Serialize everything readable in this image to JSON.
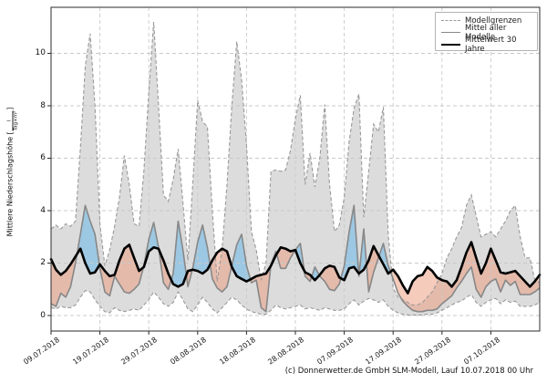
{
  "footer": {
    "credit": "(c) Donnerwetter.de GmbH SLM-Modell, Lauf 10.07.2018 00 Uhr"
  },
  "legend": {
    "items": [
      {
        "label": "Modellgrenzen",
        "style": "dashed-gray-line"
      },
      {
        "label": "Mittel aller Modelle",
        "style": "solid-gray-line"
      },
      {
        "label": "Mittelwert 30 Jahre",
        "style": "thick-black-line"
      }
    ]
  },
  "axes": {
    "y_label": "Mittlere Niederschlagshöhe",
    "y_bracket_open": "[",
    "y_bracket_close": "]",
    "y_unit_numerator": "l",
    "y_unit_denominator": "Tag×m²"
  },
  "chart_data": {
    "type": "area",
    "title": "",
    "xlabel": "",
    "ylabel": "Mittlere Niederschlagshöhe [l/(Tag×m²)]",
    "grid": true,
    "legend_position": "upper right",
    "ylim": [
      0,
      11.75
    ],
    "y_ticks": [
      0,
      2,
      4,
      6,
      8,
      10
    ],
    "x_is_days_from": "09.07.2018",
    "x_tick_interval_days": 10,
    "x_tick_labels": [
      "09.07.2018",
      "19.07.2018",
      "29.07.2018",
      "08.08.2018",
      "18.08.2018",
      "28.08.2018",
      "07.09.2018",
      "17.09.2018",
      "27.09.2018",
      "07.10.2018"
    ],
    "colors": {
      "band_fill": "#dcdcdc",
      "bound_line": "#999999",
      "mean_line": "#878787",
      "norm_line": "#000000",
      "above_fill": "rgba(140,195,230,0.78)",
      "below_fill": "rgba(236,156,126,0.52)",
      "grid_line": "#c9c9c9",
      "frame": "#2b2b2b"
    },
    "series": [
      {
        "name": "Modellgrenzen (oben)",
        "values": [
          3.3,
          3.45,
          3.3,
          3.5,
          3.4,
          3.6,
          6.4,
          9.5,
          10.75,
          8.0,
          3.5,
          1.9,
          2.5,
          3.4,
          4.5,
          6.1,
          5.0,
          3.5,
          3.4,
          5.5,
          8.5,
          11.2,
          8.0,
          4.6,
          4.35,
          5.2,
          6.35,
          4.3,
          2.1,
          5.0,
          8.2,
          7.4,
          7.2,
          4.0,
          1.3,
          2.5,
          5.0,
          8.0,
          10.45,
          9.0,
          6.5,
          3.2,
          2.5,
          1.35,
          2.0,
          5.5,
          5.55,
          5.5,
          5.55,
          6.3,
          7.5,
          8.4,
          5.0,
          6.2,
          4.9,
          6.0,
          8.05,
          5.0,
          3.2,
          3.45,
          4.5,
          6.65,
          7.9,
          8.45,
          3.75,
          5.5,
          7.3,
          7.0,
          7.95,
          3.1,
          1.05,
          0.7,
          0.6,
          0.5,
          0.4,
          0.4,
          0.5,
          0.7,
          0.9,
          1.25,
          1.6,
          2.2,
          2.55,
          3.0,
          3.35,
          4.2,
          4.6,
          3.8,
          3.0,
          3.1,
          3.2,
          3.0,
          3.3,
          3.6,
          4.0,
          4.2,
          3.0,
          2.2,
          2.2,
          1.35,
          1.25
        ]
      },
      {
        "name": "Modellgrenzen (unten)",
        "values": [
          0.3,
          0.25,
          0.35,
          0.3,
          0.3,
          0.4,
          0.7,
          0.95,
          0.9,
          0.6,
          0.35,
          0.15,
          0.1,
          0.3,
          0.2,
          0.15,
          0.2,
          0.25,
          0.2,
          0.4,
          0.6,
          0.9,
          0.7,
          0.45,
          0.35,
          0.5,
          0.9,
          0.6,
          0.25,
          0.15,
          0.4,
          0.7,
          0.5,
          0.25,
          0.1,
          0.3,
          0.5,
          0.7,
          0.6,
          0.4,
          0.25,
          0.15,
          0.1,
          0.05,
          0.05,
          0.2,
          0.4,
          0.3,
          0.25,
          0.3,
          0.35,
          0.4,
          0.25,
          0.3,
          0.25,
          0.2,
          0.3,
          0.25,
          0.2,
          0.2,
          0.25,
          0.45,
          0.6,
          0.4,
          0.55,
          0.65,
          0.6,
          0.5,
          0.6,
          0.35,
          0.2,
          0.1,
          0.05,
          0.02,
          0.02,
          0.02,
          0.02,
          0.05,
          0.05,
          0.1,
          0.2,
          0.3,
          0.4,
          0.5,
          0.55,
          0.7,
          0.8,
          0.5,
          0.35,
          0.5,
          0.6,
          0.65,
          0.45,
          0.6,
          0.5,
          0.55,
          0.35,
          0.35,
          0.35,
          0.4,
          0.5
        ]
      },
      {
        "name": "Mittel aller Modelle",
        "values": [
          0.45,
          0.35,
          0.85,
          0.7,
          1.1,
          2.0,
          3.1,
          4.2,
          3.6,
          3.1,
          1.8,
          0.9,
          0.75,
          1.5,
          1.2,
          0.9,
          0.85,
          1.0,
          1.2,
          1.9,
          2.9,
          3.55,
          2.6,
          1.25,
          1.0,
          1.6,
          3.6,
          2.5,
          1.1,
          1.8,
          2.8,
          3.45,
          2.6,
          1.4,
          1.05,
          0.9,
          1.1,
          1.9,
          2.7,
          3.1,
          1.9,
          1.25,
          1.35,
          0.3,
          0.15,
          1.95,
          2.45,
          1.8,
          1.8,
          2.2,
          2.5,
          2.75,
          1.5,
          1.3,
          1.85,
          1.5,
          1.3,
          1.0,
          0.95,
          1.2,
          1.9,
          3.2,
          4.2,
          1.5,
          3.3,
          0.9,
          1.65,
          2.2,
          2.75,
          1.9,
          1.4,
          0.85,
          0.55,
          0.35,
          0.2,
          0.15,
          0.15,
          0.2,
          0.2,
          0.25,
          0.45,
          0.6,
          0.75,
          1.05,
          1.3,
          1.6,
          1.85,
          1.0,
          0.7,
          1.1,
          1.3,
          1.4,
          0.9,
          1.35,
          1.15,
          1.3,
          0.8,
          0.8,
          0.8,
          0.9,
          1.05
        ]
      },
      {
        "name": "Mittelwert 30 Jahre",
        "values": [
          2.15,
          1.75,
          1.55,
          1.7,
          1.95,
          2.25,
          2.55,
          2.0,
          1.6,
          1.65,
          1.95,
          1.7,
          1.5,
          1.55,
          2.1,
          2.55,
          2.7,
          2.2,
          1.7,
          1.85,
          2.45,
          2.6,
          2.55,
          2.1,
          1.6,
          1.2,
          1.1,
          1.2,
          1.7,
          1.75,
          1.7,
          1.6,
          1.75,
          2.1,
          2.4,
          2.55,
          2.45,
          1.85,
          1.5,
          1.4,
          1.3,
          1.4,
          1.5,
          1.55,
          1.6,
          1.9,
          2.3,
          2.6,
          2.55,
          2.45,
          2.5,
          2.0,
          1.65,
          1.55,
          1.35,
          1.55,
          1.8,
          1.9,
          1.85,
          1.45,
          1.35,
          1.8,
          1.85,
          1.6,
          1.75,
          2.1,
          2.65,
          2.3,
          1.95,
          1.6,
          1.75,
          1.5,
          1.15,
          0.85,
          1.3,
          1.5,
          1.55,
          1.85,
          1.7,
          1.45,
          1.35,
          1.3,
          1.1,
          1.35,
          1.85,
          2.4,
          2.8,
          2.2,
          1.6,
          2.0,
          2.55,
          2.1,
          1.65,
          1.6,
          1.65,
          1.7,
          1.5,
          1.3,
          1.1,
          1.3,
          1.55
        ]
      }
    ]
  }
}
